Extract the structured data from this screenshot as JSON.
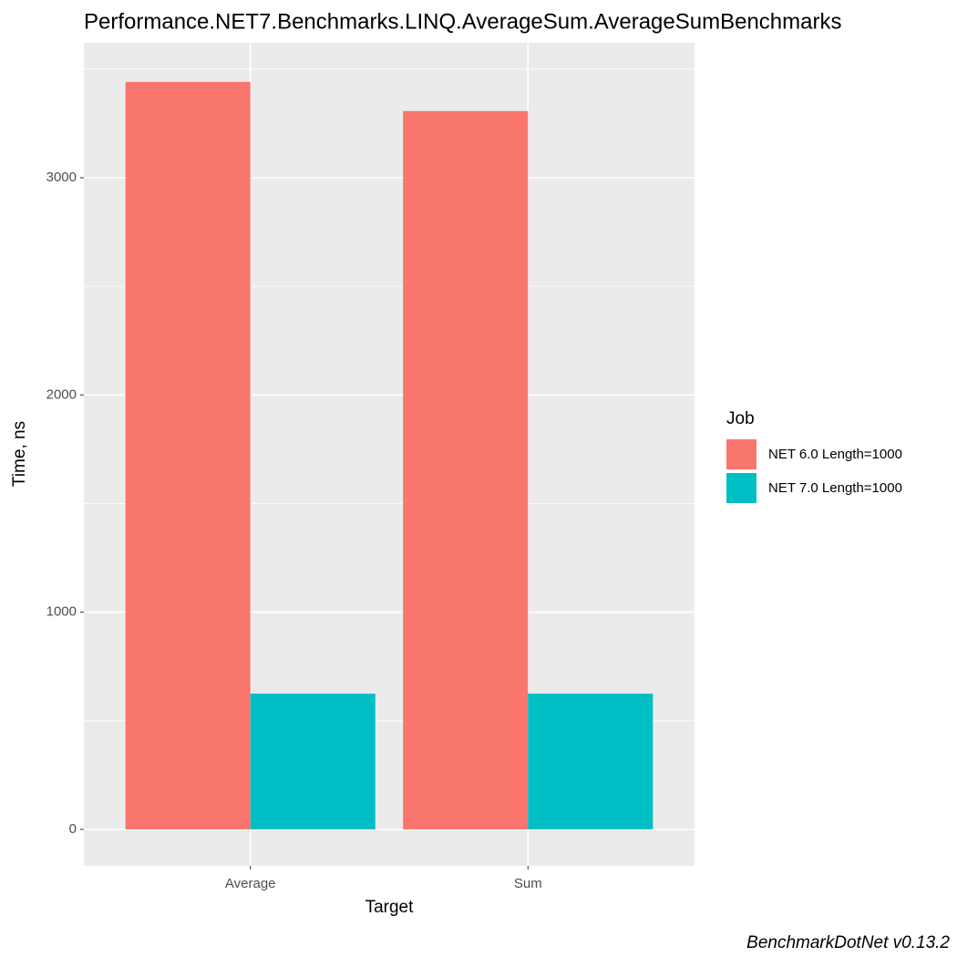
{
  "chart_data": {
    "type": "bar",
    "title": "Performance.NET7.Benchmarks.LINQ.AverageSum.AverageSumBenchmarks",
    "x_label": "Target",
    "y_label": "Time, ns",
    "caption": "BenchmarkDotNet v0.13.2",
    "legend_title": "Job",
    "categories": [
      "Average",
      "Sum"
    ],
    "series": [
      {
        "name": "NET 6.0 Length=1000",
        "color": "#f8766d",
        "values": [
          3441,
          3307
        ]
      },
      {
        "name": "NET 7.0 Length=1000",
        "color": "#00bfc4",
        "values": [
          625,
          625
        ]
      }
    ],
    "ylim": [
      -168,
      3621
    ],
    "yticks": [
      0,
      1000,
      2000,
      3000
    ],
    "minor_yticks": [
      500,
      1500,
      2500,
      3500
    ],
    "grid": true,
    "legend": "right"
  }
}
